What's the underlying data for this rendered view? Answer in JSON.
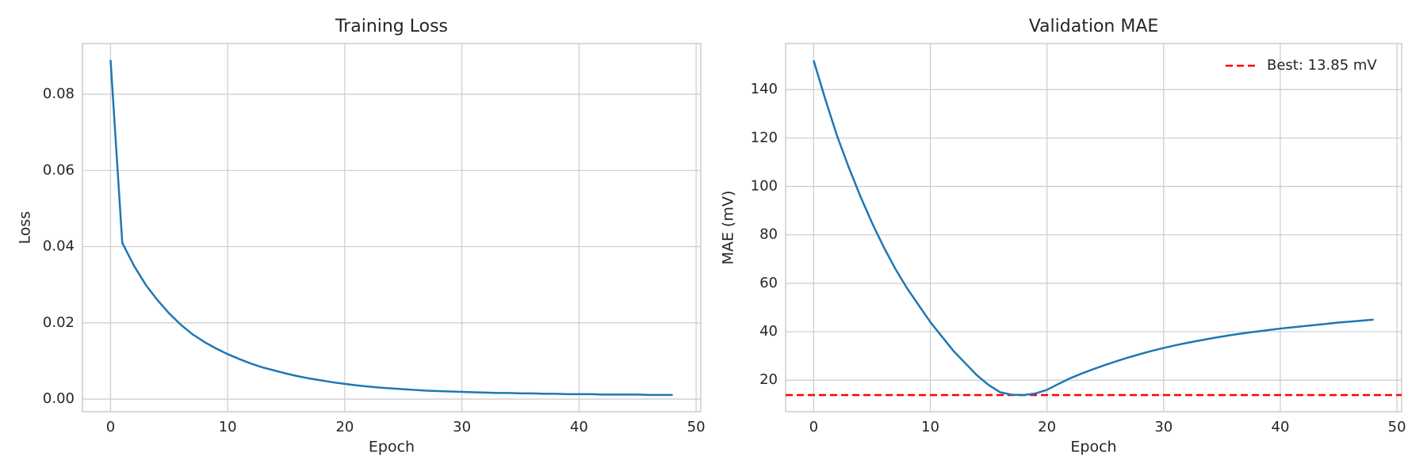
{
  "chart_data": [
    {
      "type": "line",
      "title": "Training Loss",
      "xlabel": "Epoch",
      "ylabel": "Loss",
      "x": [
        0,
        1,
        2,
        3,
        4,
        5,
        6,
        7,
        8,
        9,
        10,
        11,
        12,
        13,
        14,
        15,
        16,
        17,
        18,
        19,
        20,
        21,
        22,
        23,
        24,
        25,
        26,
        27,
        28,
        29,
        30,
        31,
        32,
        33,
        34,
        35,
        36,
        37,
        38,
        39,
        40,
        41,
        42,
        43,
        44,
        45,
        46,
        47,
        48
      ],
      "series": [
        {
          "name": "Loss",
          "color": "#1f77b4",
          "values": [
            0.089,
            0.041,
            0.035,
            0.03,
            0.026,
            0.0225,
            0.0195,
            0.017,
            0.015,
            0.0133,
            0.0118,
            0.0105,
            0.0093,
            0.0083,
            0.0075,
            0.0067,
            0.006,
            0.0054,
            0.0049,
            0.0044,
            0.004,
            0.0036,
            0.0033,
            0.003,
            0.0028,
            0.0026,
            0.0024,
            0.0022,
            0.0021,
            0.002,
            0.0019,
            0.0018,
            0.0017,
            0.0016,
            0.0016,
            0.0015,
            0.0015,
            0.0014,
            0.0014,
            0.0013,
            0.0013,
            0.0013,
            0.0012,
            0.0012,
            0.0012,
            0.0012,
            0.0011,
            0.0011,
            0.0011
          ]
        }
      ],
      "xlim": [
        -2.4,
        50.4
      ],
      "xticks": [
        0,
        10,
        20,
        30,
        40,
        50
      ],
      "ylim": [
        -0.0033,
        0.0933
      ],
      "yticks": [
        {
          "value": 0,
          "label": "0.00"
        },
        0.02,
        0.04,
        0.06,
        0.08
      ],
      "grid": true
    },
    {
      "type": "line",
      "title": "Validation MAE",
      "xlabel": "Epoch",
      "ylabel": "MAE (mV)",
      "x": [
        0,
        1,
        2,
        3,
        4,
        5,
        6,
        7,
        8,
        9,
        10,
        11,
        12,
        13,
        14,
        15,
        16,
        17,
        18,
        19,
        20,
        21,
        22,
        23,
        24,
        25,
        26,
        27,
        28,
        29,
        30,
        31,
        32,
        33,
        34,
        35,
        36,
        37,
        38,
        39,
        40,
        41,
        42,
        43,
        44,
        45,
        46,
        47,
        48
      ],
      "series": [
        {
          "name": "MAE",
          "color": "#1f77b4",
          "values": [
            152,
            136,
            121,
            108,
            96,
            85,
            75,
            66,
            58,
            51,
            44,
            38,
            32,
            27,
            22,
            18,
            15,
            14,
            13.85,
            14.5,
            16,
            18.5,
            20.8,
            22.8,
            24.6,
            26.3,
            27.9,
            29.4,
            30.8,
            32.1,
            33.3,
            34.4,
            35.4,
            36.3,
            37.2,
            38,
            38.8,
            39.5,
            40.1,
            40.7,
            41.3,
            41.8,
            42.3,
            42.8,
            43.3,
            43.8,
            44.2,
            44.6,
            45
          ]
        }
      ],
      "reference_line": {
        "value": 13.85,
        "label": "Best: 13.85 mV",
        "color": "#ff0000"
      },
      "legend": "upper right",
      "xlim": [
        -2.4,
        50.4
      ],
      "xticks": [
        0,
        10,
        20,
        30,
        40,
        50
      ],
      "ylim": [
        7,
        159
      ],
      "yticks": [
        20,
        40,
        60,
        80,
        100,
        120,
        140
      ],
      "grid": true
    }
  ]
}
